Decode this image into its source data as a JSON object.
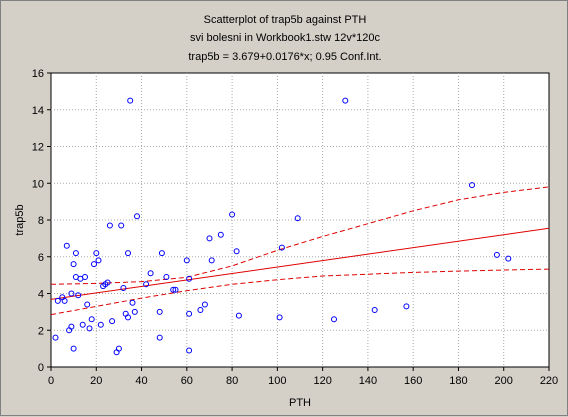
{
  "chart_data": {
    "type": "scatter",
    "title": "Scatterplot of trap5b against PTH",
    "subtitle": "svi bolesni in Workbook1.stw 12v*120c",
    "equation": "trap5b = 3.679+0.0176*x; 0.95 Conf.Int.",
    "xlabel": "PTH",
    "ylabel": "trap5b",
    "xlim": [
      0,
      220
    ],
    "ylim": [
      0,
      16
    ],
    "xticks": [
      0,
      20,
      40,
      60,
      80,
      100,
      120,
      140,
      160,
      180,
      200,
      220
    ],
    "yticks": [
      0,
      2,
      4,
      6,
      8,
      10,
      12,
      14,
      16
    ],
    "grid": true,
    "regression": {
      "intercept": 3.679,
      "slope": 0.0176
    },
    "confidence_band": {
      "lower": [
        [
          0,
          2.85
        ],
        [
          20,
          3.3
        ],
        [
          40,
          3.75
        ],
        [
          60,
          4.15
        ],
        [
          80,
          4.5
        ],
        [
          100,
          4.75
        ],
        [
          120,
          4.95
        ],
        [
          140,
          5.05
        ],
        [
          160,
          5.15
        ],
        [
          180,
          5.22
        ],
        [
          200,
          5.28
        ],
        [
          220,
          5.33
        ]
      ],
      "upper": [
        [
          0,
          4.5
        ],
        [
          20,
          4.55
        ],
        [
          40,
          4.65
        ],
        [
          60,
          4.88
        ],
        [
          80,
          5.5
        ],
        [
          100,
          6.35
        ],
        [
          120,
          7.1
        ],
        [
          140,
          7.8
        ],
        [
          160,
          8.5
        ],
        [
          180,
          9.1
        ],
        [
          200,
          9.5
        ],
        [
          220,
          9.8
        ]
      ]
    },
    "points": [
      [
        2,
        1.6
      ],
      [
        3,
        3.6
      ],
      [
        5,
        3.8
      ],
      [
        6,
        3.6
      ],
      [
        7,
        6.6
      ],
      [
        8,
        2.0
      ],
      [
        9,
        2.2
      ],
      [
        9,
        4.0
      ],
      [
        10,
        5.6
      ],
      [
        10,
        1.0
      ],
      [
        11,
        6.2
      ],
      [
        11,
        4.9
      ],
      [
        12,
        3.9
      ],
      [
        13,
        4.8
      ],
      [
        14,
        2.3
      ],
      [
        15,
        4.9
      ],
      [
        16,
        3.4
      ],
      [
        17,
        2.1
      ],
      [
        18,
        2.6
      ],
      [
        19,
        5.6
      ],
      [
        20,
        6.2
      ],
      [
        21,
        5.8
      ],
      [
        22,
        2.3
      ],
      [
        23,
        4.4
      ],
      [
        24,
        4.5
      ],
      [
        25,
        4.6
      ],
      [
        26,
        7.7
      ],
      [
        27,
        2.5
      ],
      [
        29,
        0.8
      ],
      [
        30,
        1.0
      ],
      [
        31,
        7.7
      ],
      [
        32,
        4.3
      ],
      [
        33,
        2.9
      ],
      [
        34,
        2.7
      ],
      [
        34,
        6.2
      ],
      [
        35,
        14.5
      ],
      [
        36,
        3.5
      ],
      [
        37,
        3.0
      ],
      [
        38,
        8.2
      ],
      [
        42,
        4.5
      ],
      [
        44,
        5.1
      ],
      [
        48,
        3.0
      ],
      [
        48,
        1.6
      ],
      [
        49,
        6.2
      ],
      [
        51,
        4.9
      ],
      [
        54,
        4.2
      ],
      [
        55,
        4.2
      ],
      [
        60,
        5.8
      ],
      [
        61,
        0.9
      ],
      [
        61,
        4.8
      ],
      [
        61,
        2.9
      ],
      [
        66,
        3.1
      ],
      [
        68,
        3.4
      ],
      [
        70,
        7.0
      ],
      [
        71,
        5.8
      ],
      [
        75,
        7.2
      ],
      [
        80,
        8.3
      ],
      [
        82,
        6.3
      ],
      [
        83,
        2.8
      ],
      [
        101,
        2.7
      ],
      [
        102,
        6.5
      ],
      [
        109,
        8.1
      ],
      [
        125,
        2.6
      ],
      [
        130,
        14.5
      ],
      [
        143,
        3.1
      ],
      [
        157,
        3.3
      ],
      [
        186,
        9.9
      ],
      [
        197,
        6.1
      ],
      [
        202,
        5.9
      ]
    ]
  },
  "colors": {
    "background": "#d4d0c8",
    "plot_area": "#ffffff",
    "points": "#0000ff",
    "regression": "#e00000",
    "grid": "#a8a8a8"
  }
}
